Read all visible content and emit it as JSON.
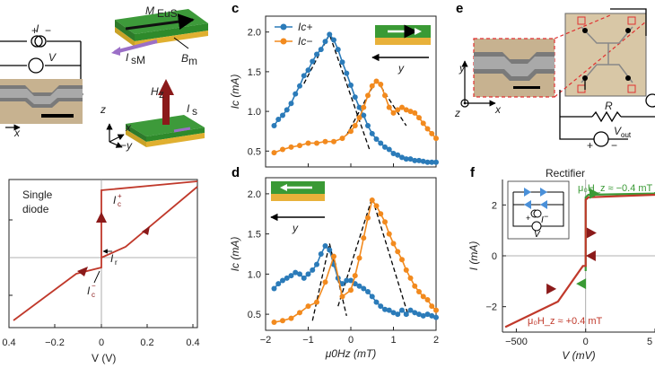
{
  "panels": {
    "c": "c",
    "d": "d",
    "e": "e",
    "f": "f"
  },
  "schematic_a": {
    "current": "I",
    "voltage": "V",
    "plus": "+",
    "minus": "−",
    "x_axis": "x"
  },
  "schematic_b": {
    "magnetization": "M",
    "magnetization_sub": "EuS",
    "spin_current": "I",
    "spin_current_sub": "sM",
    "field": "B",
    "field_sub": "m",
    "hz": "H",
    "hz_sub": "z",
    "is": "I",
    "is_sub": "s",
    "z_axis": "z",
    "y_axis": "−y",
    "x_axis": "x"
  },
  "panel_bl": {
    "title_line1": "Single",
    "title_line2": "diode",
    "ic_plus": "I",
    "ic_plus_sub": "c",
    "ic_plus_sup": "+",
    "ic_minus": "I",
    "ic_minus_sub": "c",
    "ic_minus_sup": "−",
    "ir": "I",
    "ir_sub": "r",
    "xlabel": "V (V)",
    "xticks": [
      "0.4",
      "−0.2",
      "0",
      "0.2",
      "0.4"
    ]
  },
  "panel_e": {
    "x": "x",
    "y": "y",
    "z": "z",
    "resistor": "R",
    "vout": "V",
    "vout_sub": "out",
    "plus": "+",
    "minus": "−"
  },
  "panel_f": {
    "title": "Rectifier",
    "ylabel": "I (mA)",
    "xlabel": "V (mV)",
    "yticks": [
      "2",
      "0",
      "−2"
    ],
    "xticks": [
      "−500",
      "0",
      "5"
    ],
    "label_top": "μ₀H_z ≈ −0.4 mT",
    "label_bottom": "μ₀H_z ≈ +0.4 mT",
    "inset_i": "I",
    "inset_v": "V",
    "inset_plus": "+",
    "inset_minus": "−"
  },
  "colors": {
    "blue": "#2b7bb9",
    "orange": "#f28a1e",
    "red": "#c0392b",
    "green": "#3a9a35",
    "darkred": "#8b1a1a",
    "gold": "#e8b13a",
    "purple": "#9b6fc7"
  },
  "chart_data": [
    {
      "panel": "c",
      "type": "line",
      "xlabel": "μ0Hz (mT)",
      "ylabel": "Ic (mA)",
      "xlim": [
        -2,
        2
      ],
      "ylim": [
        0.3,
        2.2
      ],
      "yticks": [
        0.5,
        1.0,
        1.5,
        2.0
      ],
      "xticks": [
        -2,
        -1,
        0,
        1,
        2
      ],
      "legend": [
        "Ic+",
        "Ic−"
      ],
      "inset_axis": "y",
      "series": [
        {
          "name": "Ic+",
          "color": "#2b7bb9",
          "x": [
            -1.8,
            -1.7,
            -1.6,
            -1.5,
            -1.4,
            -1.3,
            -1.2,
            -1.1,
            -1.0,
            -0.9,
            -0.8,
            -0.7,
            -0.6,
            -0.5,
            -0.4,
            -0.3,
            -0.2,
            -0.1,
            0.0,
            0.1,
            0.2,
            0.3,
            0.4,
            0.5,
            0.6,
            0.7,
            0.8,
            0.9,
            1.0,
            1.1,
            1.2,
            1.3,
            1.4,
            1.5,
            1.6,
            1.7,
            1.8,
            1.9,
            2.0
          ],
          "y": [
            0.82,
            0.9,
            0.95,
            1.02,
            1.1,
            1.22,
            1.32,
            1.45,
            1.52,
            1.63,
            1.72,
            1.78,
            1.88,
            1.97,
            1.9,
            1.78,
            1.62,
            1.48,
            1.33,
            1.18,
            1.05,
            0.95,
            0.82,
            0.72,
            0.65,
            0.6,
            0.55,
            0.52,
            0.47,
            0.45,
            0.42,
            0.4,
            0.4,
            0.38,
            0.38,
            0.37,
            0.36,
            0.36,
            0.36
          ]
        },
        {
          "name": "Ic−",
          "color": "#f28a1e",
          "x": [
            -1.8,
            -1.6,
            -1.4,
            -1.2,
            -1.0,
            -0.8,
            -0.6,
            -0.4,
            -0.2,
            0.0,
            0.1,
            0.2,
            0.3,
            0.4,
            0.5,
            0.6,
            0.7,
            0.8,
            0.9,
            1.0,
            1.1,
            1.2,
            1.3,
            1.4,
            1.5,
            1.6,
            1.7,
            1.8,
            1.9,
            2.0
          ],
          "y": [
            0.48,
            0.52,
            0.55,
            0.57,
            0.6,
            0.6,
            0.62,
            0.62,
            0.66,
            0.75,
            0.82,
            0.92,
            1.05,
            1.2,
            1.32,
            1.38,
            1.34,
            1.2,
            1.05,
            0.98,
            1.02,
            1.05,
            1.02,
            1.0,
            0.98,
            0.92,
            0.85,
            0.78,
            0.72,
            0.66
          ]
        }
      ],
      "fits": [
        {
          "x": [
            -1.1,
            -0.5,
            0.45
          ],
          "y": [
            1.35,
            1.97,
            0.5
          ]
        },
        {
          "x": [
            -0.1,
            0.6,
            1.3
          ],
          "y": [
            0.7,
            1.4,
            0.82
          ]
        }
      ]
    },
    {
      "panel": "d",
      "type": "line",
      "xlabel": "μ0Hz (mT)",
      "ylabel": "Ic (mA)",
      "xlim": [
        -2,
        2
      ],
      "ylim": [
        0.3,
        2.2
      ],
      "yticks": [
        0.5,
        1.0,
        1.5,
        2.0
      ],
      "xticks": [
        -2,
        -1,
        0,
        1,
        2
      ],
      "inset_axis": "y",
      "series": [
        {
          "name": "Ic+",
          "color": "#2b7bb9",
          "x": [
            -1.8,
            -1.7,
            -1.6,
            -1.5,
            -1.4,
            -1.3,
            -1.2,
            -1.1,
            -1.0,
            -0.9,
            -0.8,
            -0.7,
            -0.6,
            -0.5,
            -0.4,
            -0.3,
            -0.2,
            -0.1,
            0.0,
            0.1,
            0.2,
            0.3,
            0.4,
            0.5,
            0.6,
            0.7,
            0.8,
            0.9,
            1.0,
            1.1,
            1.2,
            1.3,
            1.4,
            1.5,
            1.6,
            1.7,
            1.8,
            1.9,
            2.0
          ],
          "y": [
            0.82,
            0.88,
            0.92,
            0.95,
            0.98,
            1.02,
            1.0,
            0.95,
            1.0,
            1.05,
            1.12,
            1.25,
            1.35,
            1.3,
            1.12,
            0.95,
            0.88,
            0.92,
            0.92,
            0.88,
            0.85,
            0.82,
            0.78,
            0.72,
            0.65,
            0.6,
            0.56,
            0.55,
            0.52,
            0.5,
            0.55,
            0.5,
            0.55,
            0.52,
            0.5,
            0.48,
            0.5,
            0.48,
            0.46
          ]
        },
        {
          "name": "Ic−",
          "color": "#f28a1e",
          "x": [
            -1.8,
            -1.6,
            -1.4,
            -1.2,
            -1.0,
            -0.8,
            -0.6,
            -0.4,
            -0.2,
            0.0,
            0.1,
            0.2,
            0.3,
            0.4,
            0.5,
            0.6,
            0.7,
            0.8,
            0.9,
            1.0,
            1.1,
            1.2,
            1.3,
            1.4,
            1.5,
            1.6,
            1.7,
            1.8,
            1.9,
            2.0
          ],
          "y": [
            0.4,
            0.42,
            0.45,
            0.52,
            0.6,
            0.65,
            0.9,
            1.22,
            0.72,
            0.8,
            0.98,
            1.2,
            1.45,
            1.7,
            1.92,
            1.85,
            1.75,
            1.65,
            1.5,
            1.38,
            1.28,
            1.18,
            1.05,
            0.95,
            0.85,
            0.78,
            0.72,
            0.68,
            0.6,
            0.55
          ]
        }
      ],
      "fits": [
        {
          "x": [
            -0.9,
            -0.5,
            -0.1
          ],
          "y": [
            0.42,
            1.38,
            0.48
          ]
        },
        {
          "x": [
            -0.3,
            0.5,
            1.35
          ],
          "y": [
            0.6,
            1.95,
            0.48
          ]
        }
      ]
    },
    {
      "panel": "f",
      "type": "line",
      "xlabel": "V (mV)",
      "ylabel": "I (mA)",
      "xlim": [
        -600,
        500
      ],
      "ylim": [
        -3,
        3
      ],
      "series": [
        {
          "name": "μ0Hz ≈ −0.4 mT",
          "color": "#3a9a35",
          "x": [
            0,
            0,
            20,
            500,
            500
          ],
          "y": [
            -0.6,
            2.3,
            2.4,
            2.45,
            2.5
          ]
        },
        {
          "name": "μ0Hz ≈ +0.4 mT",
          "color": "#c0392b",
          "x": [
            -580,
            -200,
            -20,
            0,
            0,
            20,
            500
          ],
          "y": [
            -2.8,
            -1.8,
            -0.4,
            -0.4,
            2.2,
            2.3,
            2.4
          ]
        }
      ]
    }
  ]
}
